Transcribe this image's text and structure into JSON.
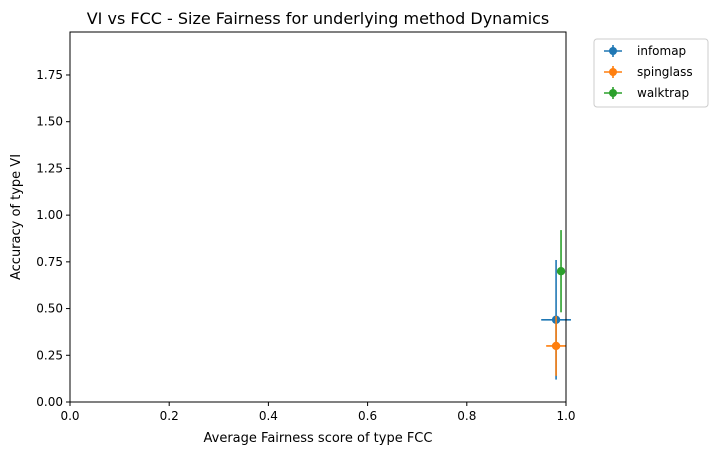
{
  "chart_data": {
    "type": "scatter",
    "title": "VI vs FCC - Size Fairness for underlying method Dynamics",
    "xlabel": "Average Fairness score of type FCC",
    "ylabel": "Accuracy of type VI",
    "xlim": [
      0.0,
      1.0
    ],
    "ylim": [
      0.0,
      1.98
    ],
    "xticks": [
      "0.0",
      "0.2",
      "0.4",
      "0.6",
      "0.8",
      "1.0"
    ],
    "yticks": [
      "0.00",
      "0.25",
      "0.50",
      "0.75",
      "1.00",
      "1.25",
      "1.50",
      "1.75"
    ],
    "legend_position": "outside-upper-right",
    "grid": false,
    "series": [
      {
        "name": "infomap",
        "color": "#1f77b4",
        "x": 0.98,
        "y": 0.44,
        "xerr": 0.03,
        "yerr": 0.32
      },
      {
        "name": "spinglass",
        "color": "#ff7f0e",
        "x": 0.98,
        "y": 0.3,
        "xerr": 0.02,
        "yerr": 0.16
      },
      {
        "name": "walktrap",
        "color": "#2ca02c",
        "x": 0.99,
        "y": 0.7,
        "xerr": 0.005,
        "yerr": 0.22
      }
    ]
  }
}
